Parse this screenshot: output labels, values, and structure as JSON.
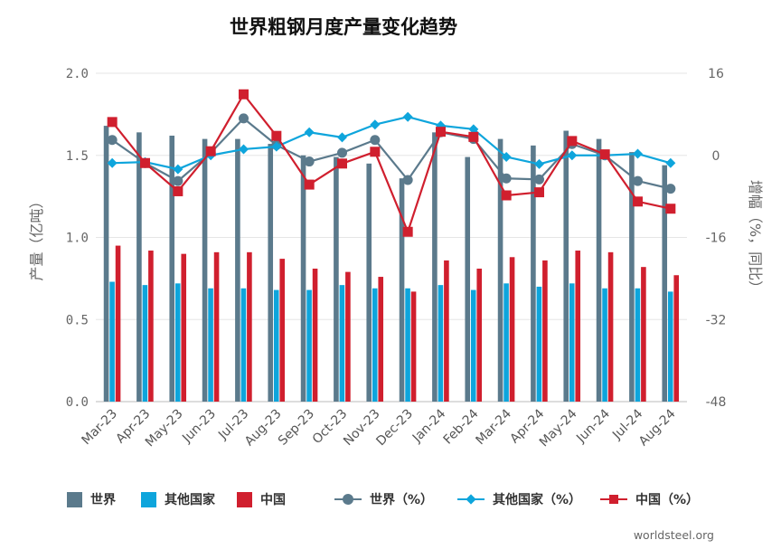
{
  "chart_data": {
    "type": "bar+line",
    "title": "世界粗钢月度产量变化趋势",
    "ylabel_left": "产量（亿吨）",
    "ylabel_right": "增幅（%，同比）",
    "ylim_left": [
      0,
      2.0
    ],
    "yticks_left": [
      "0.0",
      "0.5",
      "1.0",
      "1.5",
      "2.0"
    ],
    "ylim_right": [
      -48,
      16
    ],
    "yticks_right": [
      "-48",
      "-32",
      "-16",
      "0",
      "16"
    ],
    "categories": [
      "Mar-23",
      "Apr-23",
      "May-23",
      "Jun-23",
      "Jul-23",
      "Aug-23",
      "Sep-23",
      "Oct-23",
      "Nov-23",
      "Dec-23",
      "Jan-24",
      "Feb-24",
      "Mar-24",
      "Apr-24",
      "May-24",
      "Jun-24",
      "Jul-24",
      "Aug-24"
    ],
    "bar_series": [
      {
        "name": "世界",
        "color": "#5b7a8c",
        "values": [
          1.68,
          1.64,
          1.62,
          1.6,
          1.6,
          1.57,
          1.5,
          1.49,
          1.45,
          1.36,
          1.64,
          1.49,
          1.6,
          1.56,
          1.65,
          1.6,
          1.52,
          1.44
        ]
      },
      {
        "name": "其他国家",
        "color": "#0ea5dc",
        "values": [
          0.73,
          0.71,
          0.72,
          0.69,
          0.69,
          0.68,
          0.68,
          0.71,
          0.69,
          0.69,
          0.71,
          0.68,
          0.72,
          0.7,
          0.72,
          0.69,
          0.69,
          0.67
        ]
      },
      {
        "name": "中国",
        "color": "#d01f2e",
        "values": [
          0.95,
          0.92,
          0.9,
          0.91,
          0.91,
          0.87,
          0.81,
          0.79,
          0.76,
          0.67,
          0.86,
          0.81,
          0.88,
          0.86,
          0.92,
          0.91,
          0.82,
          0.77
        ]
      }
    ],
    "line_series": [
      {
        "name": "世界（%）",
        "color": "#5b7a8c",
        "marker": "circle",
        "values": [
          3.0,
          -1.5,
          -5.0,
          0.5,
          7.2,
          2.0,
          -1.2,
          0.5,
          3.0,
          -4.8,
          4.5,
          3.2,
          -4.5,
          -4.7,
          2.2,
          0.0,
          -5.0,
          -6.5
        ]
      },
      {
        "name": "其他国家（%）",
        "color": "#0ea5dc",
        "marker": "diamond",
        "values": [
          -1.5,
          -1.3,
          -2.7,
          0.0,
          1.2,
          1.7,
          4.5,
          3.5,
          6.0,
          7.5,
          5.8,
          5.1,
          -0.3,
          -1.7,
          0.0,
          0.0,
          0.3,
          -1.5
        ]
      },
      {
        "name": "中国（%）",
        "color": "#d01f2e",
        "marker": "square",
        "values": [
          6.5,
          -1.5,
          -7.0,
          0.8,
          11.9,
          3.8,
          -5.7,
          -1.6,
          0.7,
          -14.9,
          4.6,
          3.6,
          -7.8,
          -7.2,
          2.8,
          0.2,
          -9.0,
          -10.4
        ]
      }
    ],
    "legend": [
      "世界",
      "其他国家",
      "中国",
      "世界（%）",
      "其他国家（%）",
      "中国（%）"
    ],
    "legend_position": "bottom",
    "grid": true
  },
  "source": "worldsteel.org"
}
